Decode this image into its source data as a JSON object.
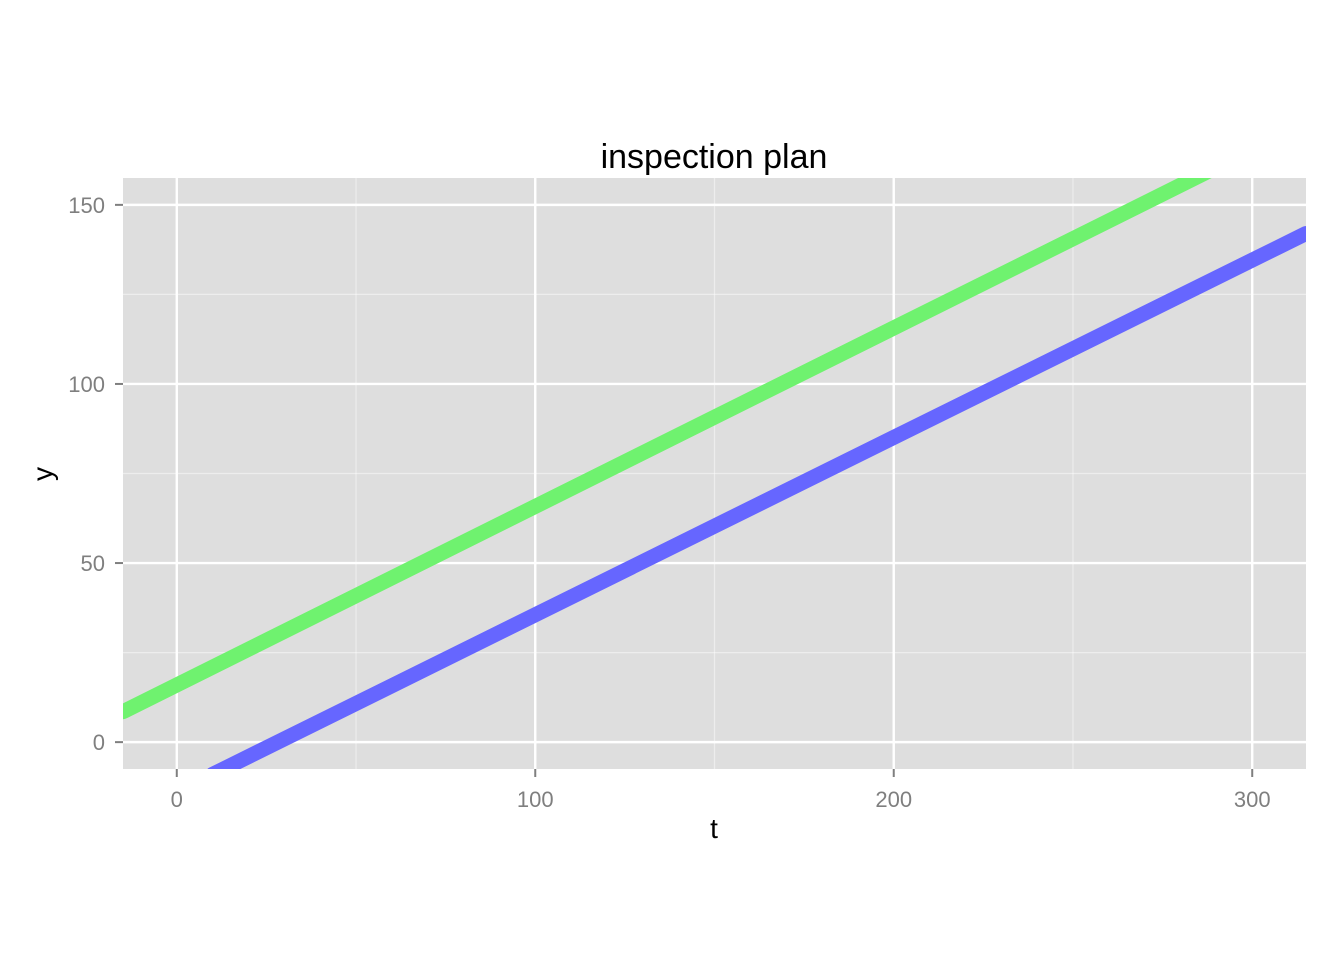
{
  "chart_data": {
    "type": "line",
    "title": "inspection plan",
    "xlabel": "t",
    "ylabel": "y",
    "xlim": [
      -15,
      315
    ],
    "ylim": [
      -7.5,
      157.5
    ],
    "x_ticks": [
      0,
      100,
      200,
      300
    ],
    "y_ticks": [
      0,
      50,
      100,
      150
    ],
    "x_minor_ticks": [
      50,
      150,
      250
    ],
    "y_minor_ticks": [
      25,
      75,
      125
    ],
    "grid": true,
    "legend": "none",
    "colors": {
      "panel_background": "#dedede",
      "grid": "#ffffff",
      "tick_label": "#7f7f7f"
    },
    "series": [
      {
        "color": "#6ff26f",
        "x": [
          -15,
          290
        ],
        "y": [
          8.5,
          160.5
        ]
      },
      {
        "color": "#6666ff",
        "x": [
          10,
          315
        ],
        "y": [
          -9,
          142
        ]
      }
    ]
  }
}
